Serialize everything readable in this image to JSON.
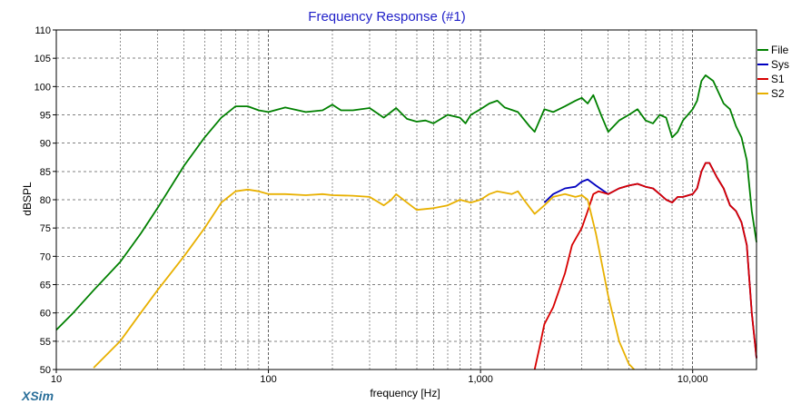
{
  "app": {
    "brand": "XSim"
  },
  "chart_data": {
    "type": "line",
    "title": "Frequency Response (#1)",
    "xlabel": "frequency [Hz]",
    "ylabel": "dBSPL",
    "xscale": "log",
    "xlim": [
      10,
      20000
    ],
    "ylim": [
      50,
      110
    ],
    "yticks": [
      50,
      55,
      60,
      65,
      70,
      75,
      80,
      85,
      90,
      95,
      100,
      105,
      110
    ],
    "xticks": [
      10,
      100,
      1000,
      10000
    ],
    "xtick_labels": [
      "10",
      "100",
      "1,000",
      "10,000"
    ],
    "grid": true,
    "legend": {
      "placement": "top-right"
    },
    "series": [
      {
        "name": "File",
        "color": "#008000",
        "points": [
          [
            10,
            57
          ],
          [
            12,
            60
          ],
          [
            15,
            64
          ],
          [
            20,
            69
          ],
          [
            25,
            74
          ],
          [
            30,
            78.5
          ],
          [
            40,
            86
          ],
          [
            50,
            91
          ],
          [
            60,
            94.5
          ],
          [
            70,
            96.5
          ],
          [
            80,
            96.5
          ],
          [
            90,
            95.8
          ],
          [
            100,
            95.5
          ],
          [
            120,
            96.3
          ],
          [
            150,
            95.5
          ],
          [
            180,
            95.8
          ],
          [
            200,
            96.8
          ],
          [
            220,
            95.8
          ],
          [
            250,
            95.8
          ],
          [
            300,
            96.2
          ],
          [
            350,
            94.5
          ],
          [
            400,
            96.2
          ],
          [
            450,
            94.3
          ],
          [
            500,
            93.8
          ],
          [
            550,
            94
          ],
          [
            600,
            93.5
          ],
          [
            700,
            95
          ],
          [
            800,
            94.5
          ],
          [
            850,
            93.5
          ],
          [
            900,
            95
          ],
          [
            1000,
            96
          ],
          [
            1100,
            97
          ],
          [
            1200,
            97.5
          ],
          [
            1300,
            96.3
          ],
          [
            1500,
            95.5
          ],
          [
            1700,
            93
          ],
          [
            1800,
            92
          ],
          [
            2000,
            96
          ],
          [
            2200,
            95.5
          ],
          [
            2500,
            96.5
          ],
          [
            2800,
            97.5
          ],
          [
            3000,
            98
          ],
          [
            3200,
            97
          ],
          [
            3400,
            98.5
          ],
          [
            3700,
            95
          ],
          [
            4000,
            92
          ],
          [
            4500,
            94
          ],
          [
            5000,
            95
          ],
          [
            5500,
            96
          ],
          [
            6000,
            94
          ],
          [
            6500,
            93.5
          ],
          [
            7000,
            95
          ],
          [
            7500,
            94.5
          ],
          [
            8000,
            91
          ],
          [
            8500,
            92
          ],
          [
            9000,
            94
          ],
          [
            10000,
            96
          ],
          [
            10500,
            97.5
          ],
          [
            11000,
            101
          ],
          [
            11500,
            102
          ],
          [
            12500,
            101
          ],
          [
            14000,
            97
          ],
          [
            15000,
            96
          ],
          [
            16000,
            93
          ],
          [
            17000,
            91
          ],
          [
            18000,
            87
          ],
          [
            19000,
            78
          ],
          [
            20000,
            72.5
          ]
        ]
      },
      {
        "name": "Sys",
        "color": "#0000c0",
        "points": [
          [
            2000,
            79.5
          ],
          [
            2200,
            81
          ],
          [
            2500,
            82
          ],
          [
            2800,
            82.3
          ],
          [
            3000,
            83.2
          ],
          [
            3200,
            83.6
          ],
          [
            3500,
            82.5
          ],
          [
            4000,
            81
          ],
          [
            4500,
            82
          ],
          [
            5000,
            82.5
          ],
          [
            5500,
            82.8
          ],
          [
            6000,
            82.3
          ],
          [
            6500,
            82
          ],
          [
            7000,
            81
          ],
          [
            7500,
            80
          ],
          [
            8000,
            79.5
          ],
          [
            8500,
            80.5
          ],
          [
            9000,
            80.5
          ],
          [
            10000,
            81
          ],
          [
            10500,
            82
          ],
          [
            11000,
            85
          ],
          [
            11500,
            86.5
          ],
          [
            12000,
            86.5
          ],
          [
            13000,
            84
          ],
          [
            14000,
            82
          ],
          [
            15000,
            79
          ],
          [
            16000,
            78
          ],
          [
            17000,
            76
          ],
          [
            18000,
            72
          ],
          [
            19000,
            60
          ],
          [
            20000,
            52
          ]
        ]
      },
      {
        "name": "S1",
        "color": "#d80000",
        "points": [
          [
            1800,
            50
          ],
          [
            1900,
            54
          ],
          [
            2000,
            58
          ],
          [
            2200,
            61
          ],
          [
            2500,
            67
          ],
          [
            2700,
            72
          ],
          [
            3000,
            75
          ],
          [
            3200,
            78
          ],
          [
            3400,
            81
          ],
          [
            3600,
            81.5
          ],
          [
            4000,
            81
          ],
          [
            4500,
            82
          ],
          [
            5000,
            82.5
          ],
          [
            5500,
            82.8
          ],
          [
            6000,
            82.3
          ],
          [
            6500,
            82
          ],
          [
            7000,
            81
          ],
          [
            7500,
            80
          ],
          [
            8000,
            79.5
          ],
          [
            8500,
            80.5
          ],
          [
            9000,
            80.5
          ],
          [
            10000,
            81
          ],
          [
            10500,
            82
          ],
          [
            11000,
            85
          ],
          [
            11500,
            86.5
          ],
          [
            12000,
            86.5
          ],
          [
            13000,
            84
          ],
          [
            14000,
            82
          ],
          [
            15000,
            79
          ],
          [
            16000,
            78
          ],
          [
            17000,
            76
          ],
          [
            18000,
            72
          ],
          [
            19000,
            60
          ],
          [
            20000,
            52
          ]
        ]
      },
      {
        "name": "S2",
        "color": "#e8b000",
        "points": [
          [
            15,
            50.3
          ],
          [
            20,
            55
          ],
          [
            25,
            60
          ],
          [
            30,
            64
          ],
          [
            40,
            70
          ],
          [
            50,
            75
          ],
          [
            60,
            79.5
          ],
          [
            70,
            81.5
          ],
          [
            80,
            81.8
          ],
          [
            90,
            81.5
          ],
          [
            100,
            81
          ],
          [
            120,
            81
          ],
          [
            150,
            80.8
          ],
          [
            180,
            81
          ],
          [
            200,
            80.8
          ],
          [
            250,
            80.7
          ],
          [
            300,
            80.5
          ],
          [
            350,
            79
          ],
          [
            380,
            80
          ],
          [
            400,
            81
          ],
          [
            450,
            79.5
          ],
          [
            500,
            78.2
          ],
          [
            600,
            78.5
          ],
          [
            700,
            79
          ],
          [
            800,
            80
          ],
          [
            900,
            79.5
          ],
          [
            1000,
            80
          ],
          [
            1100,
            81
          ],
          [
            1200,
            81.5
          ],
          [
            1400,
            81
          ],
          [
            1500,
            81.5
          ],
          [
            1600,
            80
          ],
          [
            1800,
            77.5
          ],
          [
            2000,
            79
          ],
          [
            2200,
            80.5
          ],
          [
            2500,
            81
          ],
          [
            2800,
            80.5
          ],
          [
            3000,
            80.8
          ],
          [
            3200,
            80
          ],
          [
            3500,
            74
          ],
          [
            4000,
            63
          ],
          [
            4500,
            55
          ],
          [
            5000,
            51
          ],
          [
            5300,
            50
          ]
        ]
      }
    ]
  }
}
